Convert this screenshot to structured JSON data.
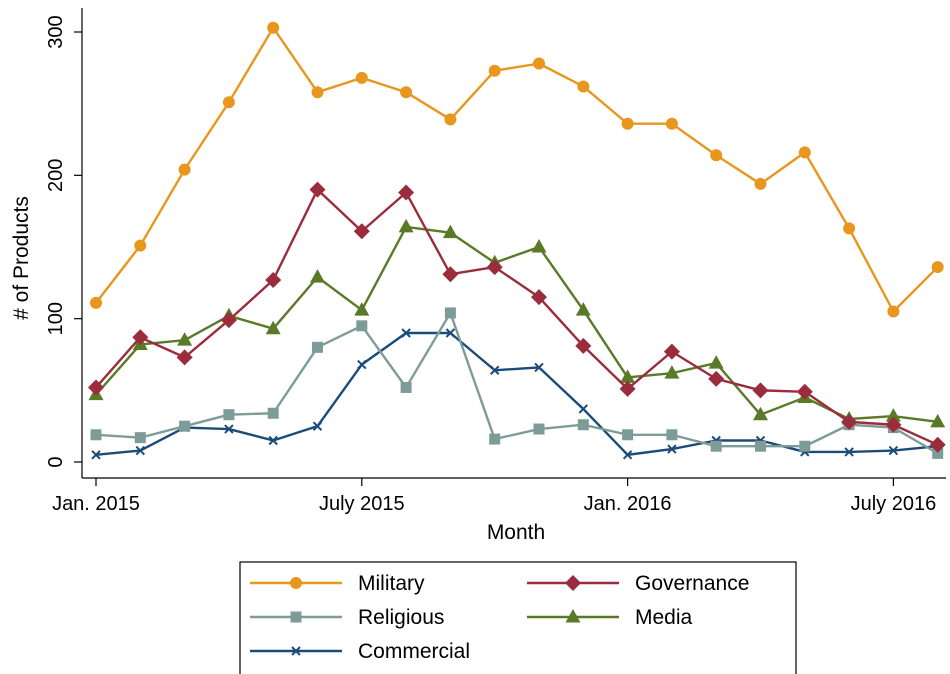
{
  "chart_data": {
    "type": "line",
    "xlabel": "Month",
    "ylabel": "# of Products",
    "ylim": [
      0,
      300
    ],
    "yticks": [
      "0",
      "100",
      "200",
      "300"
    ],
    "xticks": [
      {
        "label": "Jan. 2015",
        "index": 0
      },
      {
        "label": "July 2015",
        "index": 6
      },
      {
        "label": "Jan. 2016",
        "index": 12
      },
      {
        "label": "July 2016",
        "index": 18
      }
    ],
    "x": [
      "2015-01",
      "2015-02",
      "2015-03",
      "2015-04",
      "2015-05",
      "2015-06",
      "2015-07",
      "2015-08",
      "2015-09",
      "2015-10",
      "2015-11",
      "2015-12",
      "2016-01",
      "2016-02",
      "2016-03",
      "2016-04",
      "2016-05",
      "2016-06",
      "2016-07",
      "2016-08"
    ],
    "grid": false,
    "legend_position": "bottom",
    "series": [
      {
        "name": "Military",
        "color": "#E8961E",
        "marker": "circle",
        "values": [
          111,
          151,
          204,
          251,
          303,
          258,
          268,
          258,
          239,
          273,
          278,
          262,
          236,
          236,
          214,
          194,
          216,
          163,
          105,
          136
        ]
      },
      {
        "name": "Governance",
        "color": "#9B2C3C",
        "marker": "diamond",
        "values": [
          52,
          87,
          73,
          99,
          127,
          190,
          161,
          188,
          131,
          136,
          115,
          81,
          51,
          77,
          58,
          50,
          49,
          28,
          26,
          12
        ]
      },
      {
        "name": "Religious",
        "color": "#7E9C97",
        "marker": "square",
        "values": [
          19,
          17,
          25,
          33,
          34,
          80,
          95,
          52,
          104,
          16,
          23,
          26,
          19,
          19,
          11,
          11,
          11,
          26,
          24,
          6
        ]
      },
      {
        "name": "Media",
        "color": "#5A7A28",
        "marker": "triangle",
        "values": [
          47,
          82,
          85,
          102,
          93,
          129,
          106,
          164,
          160,
          139,
          150,
          106,
          59,
          62,
          69,
          33,
          45,
          30,
          32,
          28
        ]
      },
      {
        "name": "Commercial",
        "color": "#1B4C79",
        "marker": "x",
        "values": [
          5,
          8,
          24,
          23,
          15,
          25,
          68,
          90,
          90,
          64,
          66,
          37,
          5,
          9,
          15,
          15,
          7,
          7,
          8,
          11
        ]
      }
    ]
  }
}
